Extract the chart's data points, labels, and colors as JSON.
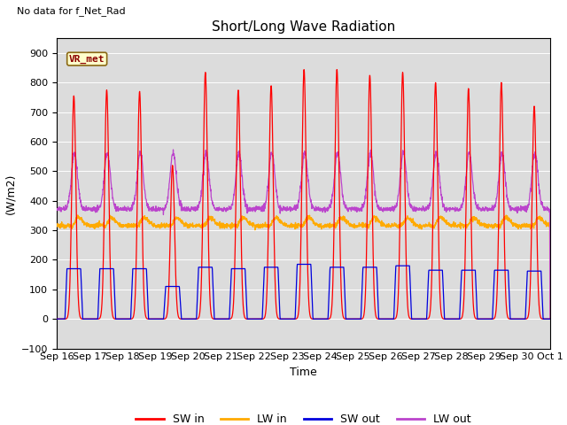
{
  "title": "Short/Long Wave Radiation",
  "xlabel": "Time",
  "ylabel": "(W/m2)",
  "ylim": [
    -100,
    950
  ],
  "yticks": [
    -100,
    0,
    100,
    200,
    300,
    400,
    500,
    600,
    700,
    800,
    900
  ],
  "plot_bg_color": "#dcdcdc",
  "fig_bg_color": "#ffffff",
  "colors": {
    "SW_in": "#ff0000",
    "LW_in": "#ffaa00",
    "SW_out": "#0000dd",
    "LW_out": "#bb44cc"
  },
  "legend_labels": [
    "SW in",
    "LW in",
    "SW out",
    "LW out"
  ],
  "vr_met_label": "VR_met",
  "no_data_label": "No data for f_Net_Rad",
  "x_labels": [
    "Sep 16",
    "Sep 17",
    "Sep 18",
    "Sep 19",
    "Sep 20",
    "Sep 21",
    "Sep 22",
    "Sep 23",
    "Sep 24",
    "Sep 25",
    "Sep 26",
    "Sep 27",
    "Sep 28",
    "Sep 29",
    "Sep 30",
    "Oct 1"
  ],
  "SW_in_peaks": [
    755,
    775,
    770,
    520,
    835,
    775,
    790,
    845,
    845,
    825,
    835,
    800,
    780,
    800,
    720,
    0
  ],
  "SW_out_peaks": [
    170,
    170,
    170,
    110,
    175,
    170,
    175,
    185,
    175,
    175,
    180,
    165,
    165,
    165,
    162,
    0
  ],
  "LW_in_baseline": 315,
  "LW_in_peak_add": 65,
  "LW_out_baseline": 372,
  "LW_out_peak_add": 190
}
